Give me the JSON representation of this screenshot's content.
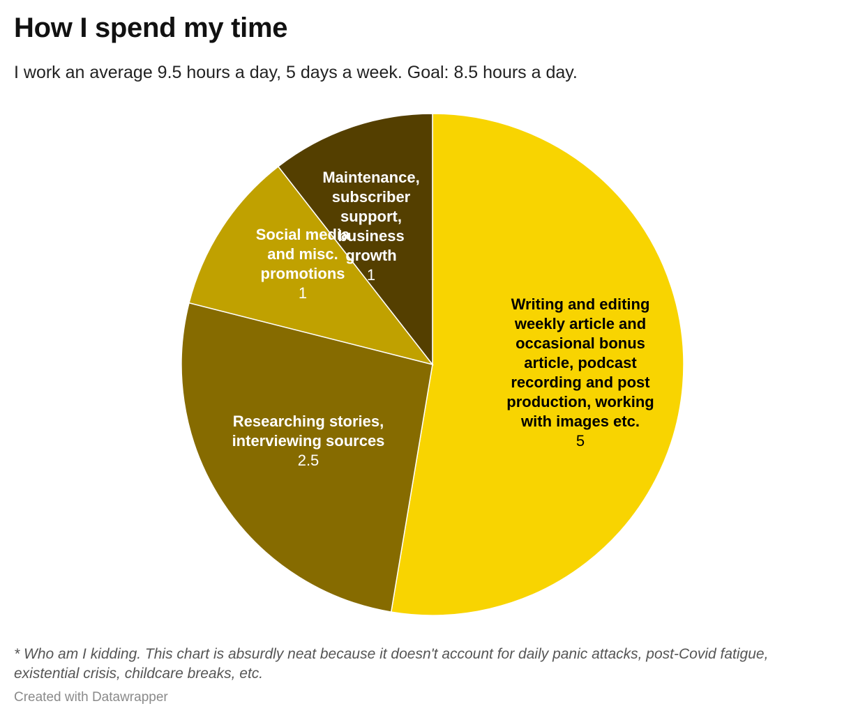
{
  "header": {
    "title": "How I spend my time",
    "subtitle": "I work an average 9.5 hours a day, 5 days a week. Goal: 8.5 hours a day."
  },
  "footer": {
    "notes": "* Who am I kidding. This chart is absurdly neat because it doesn't account for daily panic attacks, post-Covid fatigue, existential crisis, childcare breaks, etc.",
    "credit": "Created with Datawrapper"
  },
  "chart_data": {
    "type": "pie",
    "title": "How I spend my time",
    "subtitle": "I work an average 9.5 hours a day, 5 days a week. Goal: 8.5 hours a day.",
    "start": "12 o'clock",
    "direction": "clockwise",
    "slices": [
      {
        "label": "Writing and editing weekly article and occasional bonus article, podcast recording and post production, working with images etc.",
        "value": 5,
        "value_label": "5",
        "color": "#f8d401",
        "text_color": "#000000"
      },
      {
        "label": "Researching stories, interviewing sources",
        "value": 2.5,
        "value_label": "2.5",
        "color": "#866b00",
        "text_color": "#ffffff"
      },
      {
        "label": "Social media and misc. promotions",
        "value": 1,
        "value_label": "1",
        "color": "#c0a100",
        "text_color": "#ffffff"
      },
      {
        "label": "Maintenance, subscriber support, business growth",
        "value": 1,
        "value_label": "1",
        "color": "#543f00",
        "text_color": "#ffffff"
      }
    ]
  }
}
